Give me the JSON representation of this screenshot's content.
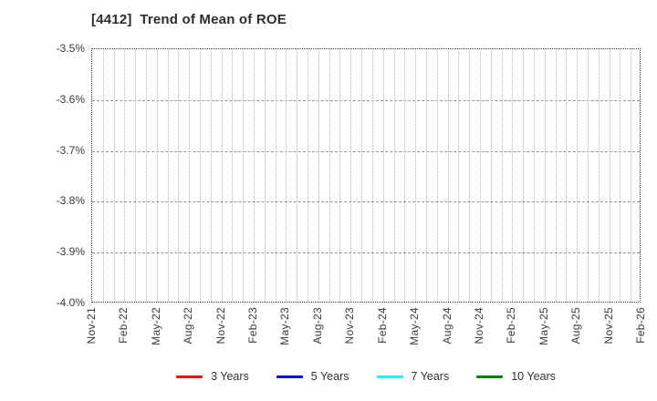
{
  "title": "[4412]  Trend of Mean of ROE",
  "chart_data": {
    "type": "line",
    "title": "[4412]  Trend of Mean of ROE",
    "xlabel": "",
    "ylabel": "",
    "ylim": [
      -4.0,
      -3.5
    ],
    "y_unit": "percent",
    "y_tick_labels": [
      "-3.5%",
      "-3.6%",
      "-3.7%",
      "-3.8%",
      "-3.9%",
      "-4.0%"
    ],
    "x_tick_labels": [
      "Nov-21",
      "Feb-22",
      "May-22",
      "Aug-22",
      "Nov-22",
      "Feb-23",
      "May-23",
      "Aug-23",
      "Nov-23",
      "Feb-24",
      "May-24",
      "Aug-24",
      "Nov-24",
      "Feb-25",
      "May-25",
      "Aug-25",
      "Nov-25",
      "Feb-26"
    ],
    "x_minor_gridlines_per_interval": 3,
    "grid": true,
    "legend_position": "bottom",
    "series": [
      {
        "name": "3 Years",
        "color": "#ff0000",
        "values": []
      },
      {
        "name": "5 Years",
        "color": "#0000ff",
        "values": []
      },
      {
        "name": "7 Years",
        "color": "#00ffff",
        "values": []
      },
      {
        "name": "10 Years",
        "color": "#008000",
        "values": []
      }
    ]
  },
  "colors": {
    "background": "#ffffff",
    "plot_border": "#3c3c3c",
    "vertical_grid": "#b4b4b4",
    "horizontal_grid": "#969696",
    "text": "#3a3a3a"
  }
}
